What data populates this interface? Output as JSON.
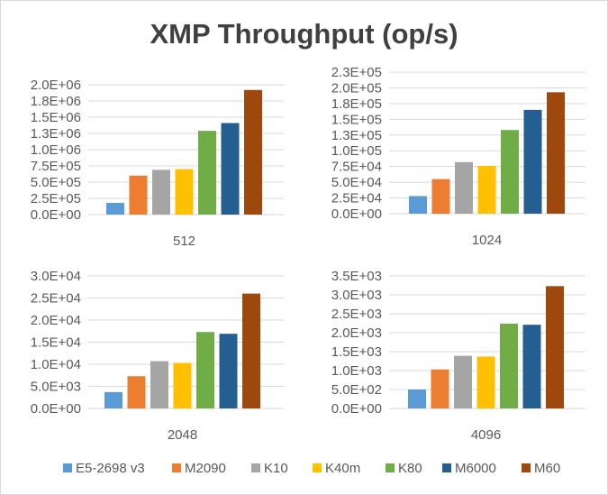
{
  "chart_data": {
    "type": "bar",
    "title": "XMP Throughput (op/s)",
    "legend": {
      "placement": "bottom",
      "entries": [
        "E5-2698 v3",
        "M2090",
        "K10",
        "K40m",
        "K80",
        "M6000",
        "M60"
      ]
    },
    "colors": [
      "#5b9bd5",
      "#ed7d31",
      "#a5a5a5",
      "#ffc000",
      "#70ad47",
      "#255e91",
      "#9e480e"
    ],
    "grid": true,
    "panels": [
      {
        "category": "512",
        "yticks": [
          "0.0E+00",
          "2.5E+05",
          "5.0E+05",
          "7.5E+05",
          "1.0E+06",
          "1.3E+06",
          "1.5E+06",
          "1.8E+06",
          "2.0E+06"
        ],
        "ylim": [
          0,
          2000000
        ],
        "series": [
          {
            "name": "E5-2698 v3",
            "value": 180000
          },
          {
            "name": "M2090",
            "value": 600000
          },
          {
            "name": "K10",
            "value": 690000
          },
          {
            "name": "K40m",
            "value": 700000
          },
          {
            "name": "K80",
            "value": 1290000
          },
          {
            "name": "M6000",
            "value": 1410000
          },
          {
            "name": "M60",
            "value": 1920000
          }
        ]
      },
      {
        "category": "1024",
        "yticks": [
          "0.0E+00",
          "2.5E+04",
          "5.0E+04",
          "7.5E+04",
          "1.0E+05",
          "1.3E+05",
          "1.5E+05",
          "1.8E+05",
          "2.0E+05",
          "2.3E+05"
        ],
        "ylim": [
          0,
          225000
        ],
        "series": [
          {
            "name": "E5-2698 v3",
            "value": 28000
          },
          {
            "name": "M2090",
            "value": 55000
          },
          {
            "name": "K10",
            "value": 82000
          },
          {
            "name": "K40m",
            "value": 76000
          },
          {
            "name": "K80",
            "value": 133000
          },
          {
            "name": "M6000",
            "value": 165000
          },
          {
            "name": "M60",
            "value": 193000
          }
        ]
      },
      {
        "category": "2048",
        "yticks": [
          "0.0E+00",
          "5.0E+03",
          "1.0E+04",
          "1.5E+04",
          "2.0E+04",
          "2.5E+04",
          "3.0E+04"
        ],
        "ylim": [
          0,
          30000
        ],
        "series": [
          {
            "name": "E5-2698 v3",
            "value": 3700
          },
          {
            "name": "M2090",
            "value": 7300
          },
          {
            "name": "K10",
            "value": 10700
          },
          {
            "name": "K40m",
            "value": 10300
          },
          {
            "name": "K80",
            "value": 17300
          },
          {
            "name": "M6000",
            "value": 16900
          },
          {
            "name": "M60",
            "value": 26000
          }
        ]
      },
      {
        "category": "4096",
        "yticks": [
          "0.0E+00",
          "5.0E+02",
          "1.0E+03",
          "1.5E+03",
          "2.0E+03",
          "2.5E+03",
          "3.0E+03",
          "3.5E+03"
        ],
        "ylim": [
          0,
          3500
        ],
        "series": [
          {
            "name": "E5-2698 v3",
            "value": 500
          },
          {
            "name": "M2090",
            "value": 1030
          },
          {
            "name": "K10",
            "value": 1390
          },
          {
            "name": "K40m",
            "value": 1370
          },
          {
            "name": "K80",
            "value": 2240
          },
          {
            "name": "M6000",
            "value": 2210
          },
          {
            "name": "M60",
            "value": 3230
          }
        ]
      }
    ]
  }
}
